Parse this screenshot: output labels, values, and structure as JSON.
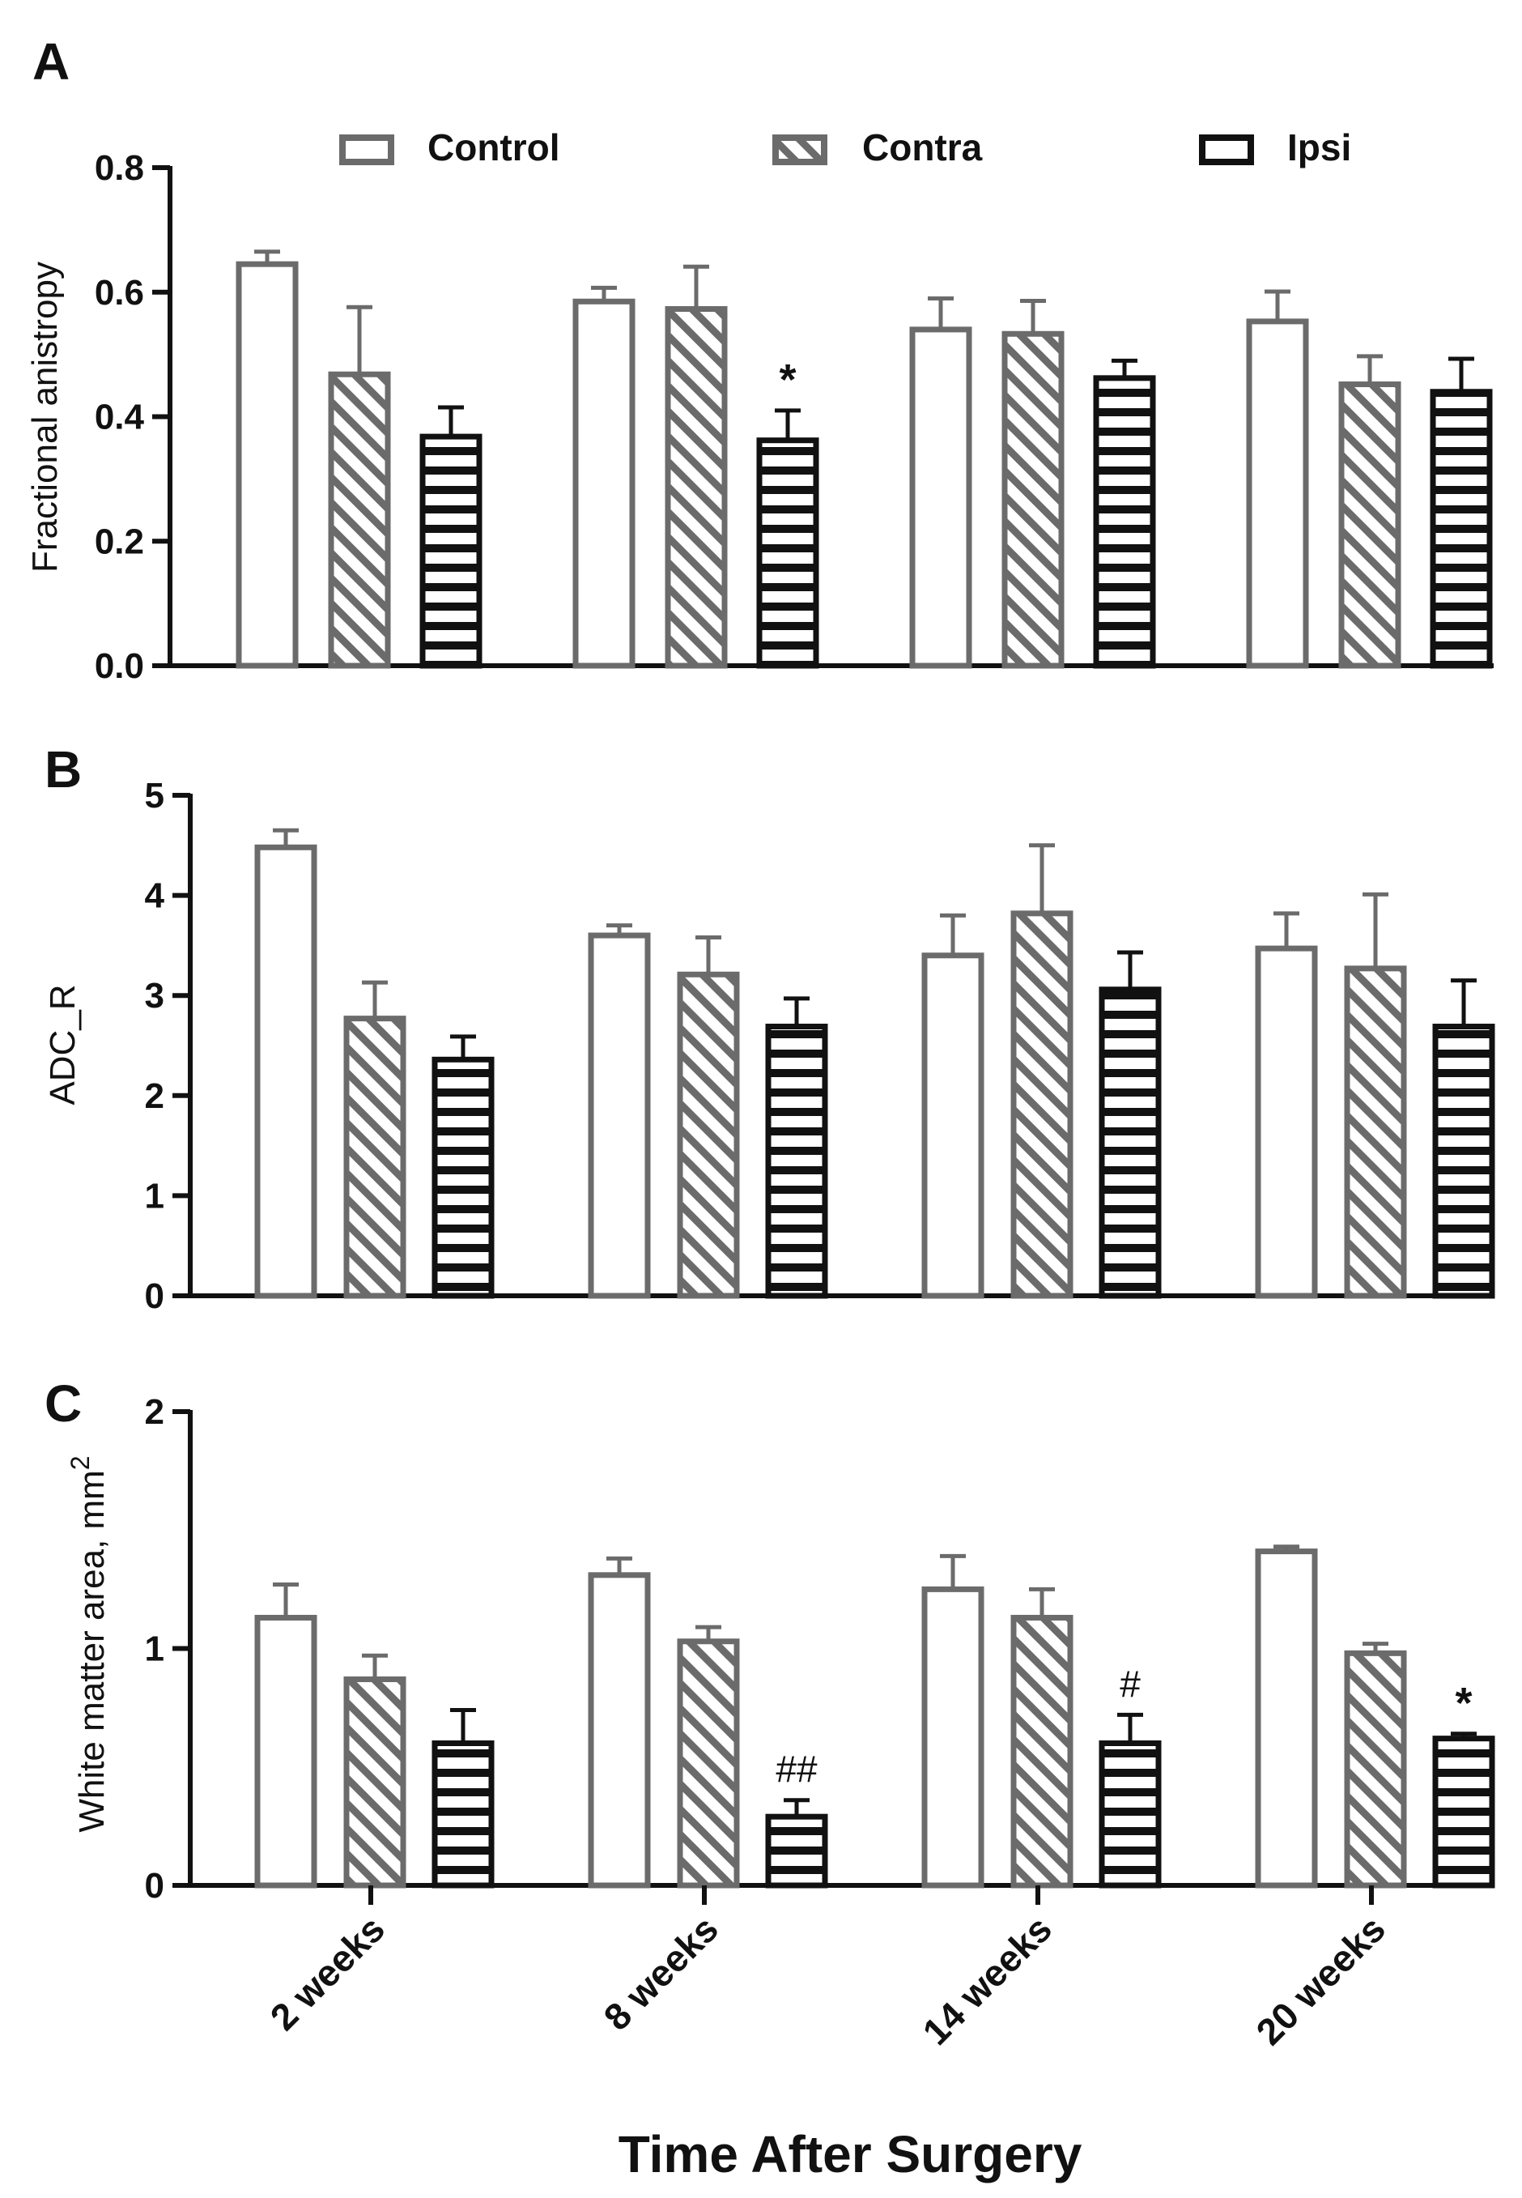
{
  "legend": {
    "items": [
      {
        "label": "Control",
        "key": "control"
      },
      {
        "label": "Contra",
        "key": "contra"
      },
      {
        "label": "Ipsi",
        "key": "ipsi"
      }
    ]
  },
  "colors": {
    "control_stroke": "#6b6b6b",
    "contra_stroke": "#6b6b6b",
    "ipsi_stroke": "#111111",
    "axis": "#111111",
    "background": "#ffffff"
  },
  "xlabel": "Time After Surgery",
  "chart_data": [
    {
      "panel": "A",
      "type": "bar",
      "ylabel": "Fractional anistropy",
      "ylabel_sup": "",
      "ylim": [
        0,
        0.8
      ],
      "yticks": [
        "0.0",
        "0.2",
        "0.4",
        "0.6",
        "0.8"
      ],
      "ytick_values": [
        0,
        0.2,
        0.4,
        0.6,
        0.8
      ],
      "categories": [
        "2 weeks",
        "8 weeks",
        "14 weeks",
        "20 weeks"
      ],
      "series": [
        {
          "name": "Control",
          "values": [
            0.645,
            0.585,
            0.54,
            0.553
          ],
          "errors": [
            0.02,
            0.022,
            0.05,
            0.048
          ]
        },
        {
          "name": "Contra",
          "values": [
            0.468,
            0.573,
            0.533,
            0.452
          ],
          "errors": [
            0.108,
            0.068,
            0.053,
            0.045
          ]
        },
        {
          "name": "Ipsi",
          "values": [
            0.368,
            0.362,
            0.462,
            0.44
          ],
          "errors": [
            0.047,
            0.048,
            0.028,
            0.053
          ]
        }
      ],
      "annotations": [
        {
          "category_index": 1,
          "series_index": 2,
          "text": "*"
        }
      ]
    },
    {
      "panel": "B",
      "type": "bar",
      "ylabel": "ADC_R",
      "ylabel_sup": "",
      "ylim": [
        0,
        5
      ],
      "yticks": [
        "0",
        "1",
        "2",
        "3",
        "4",
        "5"
      ],
      "ytick_values": [
        0,
        1,
        2,
        3,
        4,
        5
      ],
      "categories": [
        "2 weeks",
        "8 weeks",
        "14 weeks",
        "20 weeks"
      ],
      "series": [
        {
          "name": "Control",
          "values": [
            4.48,
            3.6,
            3.4,
            3.47
          ],
          "errors": [
            0.17,
            0.1,
            0.4,
            0.35
          ]
        },
        {
          "name": "Contra",
          "values": [
            2.77,
            3.21,
            3.82,
            3.27
          ],
          "errors": [
            0.36,
            0.37,
            0.68,
            0.74
          ]
        },
        {
          "name": "Ipsi",
          "values": [
            2.36,
            2.69,
            3.06,
            2.69
          ],
          "errors": [
            0.23,
            0.28,
            0.37,
            0.46
          ]
        }
      ],
      "annotations": []
    },
    {
      "panel": "C",
      "type": "bar",
      "ylabel": "White matter area, mm",
      "ylabel_sup": "2",
      "ylim": [
        0,
        2
      ],
      "yticks": [
        "0",
        "1",
        "2"
      ],
      "ytick_values": [
        0,
        1,
        2
      ],
      "categories": [
        "2 weeks",
        "8 weeks",
        "14 weeks",
        "20 weeks"
      ],
      "series": [
        {
          "name": "Control",
          "values": [
            1.13,
            1.31,
            1.25,
            1.41
          ],
          "errors": [
            0.14,
            0.07,
            0.14,
            0.02
          ]
        },
        {
          "name": "Contra",
          "values": [
            0.87,
            1.03,
            1.13,
            0.98
          ],
          "errors": [
            0.1,
            0.06,
            0.12,
            0.04
          ]
        },
        {
          "name": "Ipsi",
          "values": [
            0.6,
            0.29,
            0.6,
            0.62
          ],
          "errors": [
            0.14,
            0.07,
            0.12,
            0.02
          ]
        }
      ],
      "annotations": [
        {
          "category_index": 1,
          "series_index": 2,
          "text": "##"
        },
        {
          "category_index": 2,
          "series_index": 2,
          "text": "#"
        },
        {
          "category_index": 3,
          "series_index": 2,
          "text": "*"
        }
      ]
    }
  ]
}
